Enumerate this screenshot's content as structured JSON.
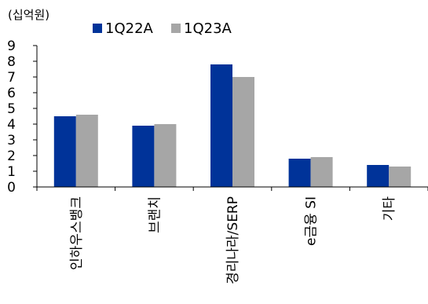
{
  "chart_data": {
    "type": "bar",
    "unit": "(십억원)",
    "categories": [
      "인하우스뱅크",
      "브랜치",
      "경리나라/SERP",
      "e금융 SI",
      "기타"
    ],
    "series": [
      {
        "name": "1Q22A",
        "color": "#003399",
        "values": [
          4.5,
          3.9,
          7.8,
          1.8,
          1.4
        ]
      },
      {
        "name": "1Q23A",
        "color": "#a6a6a6",
        "values": [
          4.6,
          4.0,
          7.0,
          1.9,
          1.3
        ]
      }
    ],
    "ylim": [
      0,
      9
    ],
    "yticks": [
      "0",
      "1",
      "2",
      "3",
      "4",
      "5",
      "6",
      "7",
      "8",
      "9"
    ],
    "grid": false,
    "legend": "top"
  }
}
